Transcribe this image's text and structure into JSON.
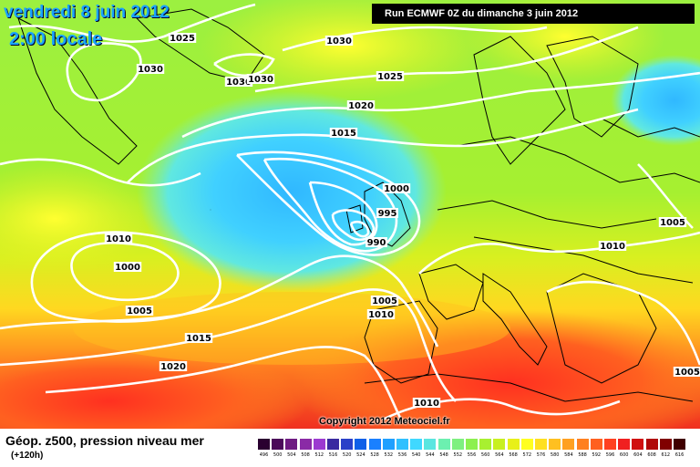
{
  "header": {
    "date": "vendredi 8 juin 2012",
    "time": "2:00 locale",
    "run": "Run ECMWF 0Z du dimanche 3 juin 2012"
  },
  "copyright": "Copyright 2012 Meteociel.fr",
  "footer": {
    "title": "Géop. z500, pression niveau mer",
    "subtitle": "(+120h)"
  },
  "isobar_labels": [
    "1025",
    "1030",
    "1030",
    "1030",
    "1030",
    "1025",
    "1020",
    "1015",
    "1000",
    "995",
    "990",
    "1010",
    "1000",
    "1005",
    "1005",
    "1010",
    "1015",
    "1020",
    "1010",
    "1005",
    "1010",
    "1005"
  ],
  "scale": {
    "values": [
      "496",
      "500",
      "504",
      "508",
      "512",
      "516",
      "520",
      "524",
      "528",
      "532",
      "536",
      "540",
      "544",
      "548",
      "552",
      "556",
      "560",
      "564",
      "568",
      "572",
      "576",
      "580",
      "584",
      "588",
      "592",
      "596",
      "600",
      "604",
      "608",
      "612",
      "616"
    ],
    "colors": [
      "#2a0030",
      "#4b0a5a",
      "#6e1a82",
      "#8a2aa6",
      "#9c3ad0",
      "#3a2aa0",
      "#2a40c8",
      "#1060e8",
      "#1a80ff",
      "#20a0ff",
      "#30c0ff",
      "#40d8ff",
      "#5ae6e0",
      "#6cf0b0",
      "#7ef080",
      "#8cf050",
      "#a8f030",
      "#c8f020",
      "#e8f018",
      "#ffff20",
      "#ffe020",
      "#ffc020",
      "#ffa020",
      "#ff8020",
      "#ff6020",
      "#ff4020",
      "#f02020",
      "#d01010",
      "#b00808",
      "#800000",
      "#400000"
    ]
  }
}
